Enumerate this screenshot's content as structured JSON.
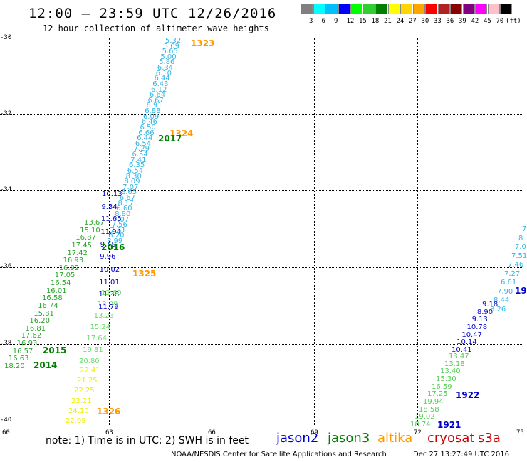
{
  "title": "12:00 – 23:59 UTC 12/26/2016",
  "subtitle": "12 hour collection of altimeter wave heights",
  "colorbar": {
    "unit": "(ft)",
    "colors": [
      "#808080",
      "#00ffff",
      "#00bfff",
      "#0000ff",
      "#00ff00",
      "#32cd32",
      "#008000",
      "#ffff00",
      "#ffd700",
      "#ffa500",
      "#ff0000",
      "#b22222",
      "#8b0000",
      "#800080",
      "#ff00ff",
      "#ffc0cb",
      "#000000"
    ],
    "labels": [
      "3",
      "6",
      "9",
      "12",
      "15",
      "18",
      "21",
      "24",
      "27",
      "30",
      "33",
      "36",
      "39",
      "42",
      "45",
      "70"
    ]
  },
  "axes": {
    "lat_labels": [
      "-30",
      "-32",
      "-34",
      "-36",
      "-38",
      "-40"
    ],
    "lon_labels": [
      "60",
      "63",
      "66",
      "69",
      "72",
      "75"
    ]
  },
  "track_times": {
    "t1323": "1323",
    "t1324": "1324",
    "t1325": "1325",
    "t1326": "1326",
    "t2017": "2017",
    "t2016": "2016",
    "t2015": "2015",
    "t2014": "2014",
    "t19": "19",
    "t1922": "1922",
    "t1921": "1921"
  },
  "track_colors": {
    "jason2": "#0000cc",
    "jason3": "#008000",
    "altika": "#ff9900",
    "cryosat": "#cc0000",
    "s3a": "#cc0000",
    "time_orange": "#ff9900",
    "time_green": "#008000",
    "time_blue": "#0000cc"
  },
  "values": {
    "cyan": [
      "5.32",
      "5.09",
      "5.65",
      "5.00",
      "5.86",
      "6.34",
      "6.10",
      "6.44",
      "6.43",
      "6.12",
      "6.64",
      "6.67",
      "6.91",
      "6.88",
      "6.09",
      "6.46",
      "6.50",
      "6.66",
      "6.44",
      "6.54",
      "7.29",
      "6.54",
      "7.41",
      "6.35",
      "6.54",
      "8.30",
      "8.09",
      "7.07",
      "8.65",
      "6.67",
      "8.17",
      "6.60",
      "8.80",
      "7.07",
      "7.56",
      "7.61",
      "8.20",
      "8.99"
    ],
    "blue_a": [
      "10.13",
      "9.34",
      "11.65",
      "11.94",
      "9.49",
      "9.96",
      "10.02",
      "11.01",
      "11.38",
      "11.79"
    ],
    "green_a": [
      "13.67",
      "15.10",
      "16.87",
      "17.45",
      "17.42",
      "16.93",
      "16.92",
      "17.05",
      "16.54",
      "16.01",
      "16.58",
      "16.74",
      "15.81",
      "16.20",
      "16.81",
      "17.62",
      "16.93",
      "16.57",
      "16.63",
      "18.20"
    ],
    "lgreen_a": [
      "12.60",
      "13.09",
      "13.23",
      "15.24",
      "17.64",
      "19.81",
      "20.80"
    ],
    "yellow_a": [
      "22.41",
      "21.25",
      "22.25",
      "23.21",
      "24.10",
      "22.09"
    ],
    "right_cyan": [
      "7",
      "8",
      "7.0",
      "7.51",
      "7.46",
      "7.27",
      "6.61",
      "7.90",
      "8.44",
      "8.26"
    ],
    "right_blue": [
      "9.18",
      "8.90",
      "9.13",
      "10.78",
      "10.47",
      "10.14",
      "10.41"
    ],
    "right_green": [
      "13.47",
      "13.18",
      "13.40",
      "15.30",
      "16.59",
      "17.25",
      "19.94",
      "18.58",
      "19.02",
      "18.74"
    ]
  },
  "note": "note:  1) Time is in UTC;  2) SWH is in feet",
  "legend": {
    "jason2": "jason2",
    "jason3": "jason3",
    "altika": "altika",
    "cryosat": "cryosat",
    "s3a": "s3a"
  },
  "footer": "NOAA/NESDIS Center for Satellite Applications and Research",
  "timestamp": "Dec 27 13:27:49 UTC 2016"
}
